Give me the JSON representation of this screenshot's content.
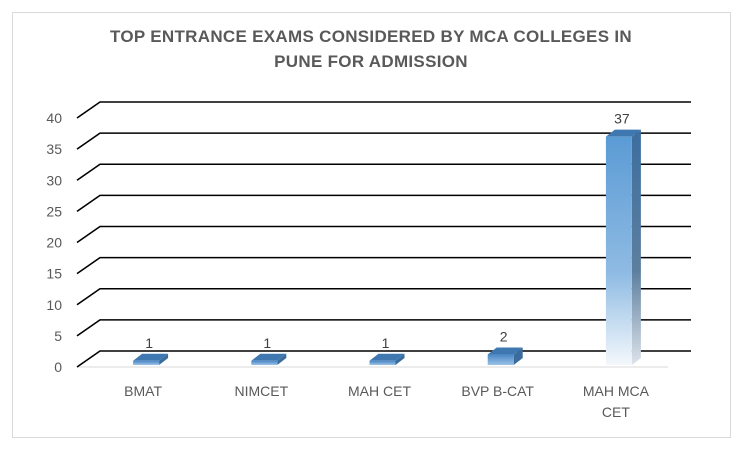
{
  "chart_data": {
    "type": "bar",
    "style": "3d-column",
    "title_lines": [
      "TOP ENTRANCE EXAMS CONSIDERED BY MCA COLLEGES IN",
      "PUNE FOR ADMISSION"
    ],
    "categories": [
      "BMAT",
      "NIMCET",
      "MAH CET",
      "BVP B-CAT",
      "MAH MCA CET"
    ],
    "category_lines": [
      [
        "BMAT"
      ],
      [
        "NIMCET"
      ],
      [
        "MAH CET"
      ],
      [
        "BVP B-CAT"
      ],
      [
        "MAH MCA",
        "CET"
      ]
    ],
    "values": [
      1,
      1,
      1,
      2,
      37
    ],
    "data_labels": [
      "1",
      "1",
      "1",
      "2",
      "37"
    ],
    "y_ticks": [
      "0",
      "5",
      "10",
      "15",
      "20",
      "25",
      "30",
      "35",
      "40"
    ],
    "ylim": [
      0,
      40
    ],
    "xlabel": "",
    "ylabel": "",
    "grid": true,
    "legend": "none",
    "colors": {
      "bar_top": "#4f8fcf",
      "bar_bottom": "#f2f7fc",
      "bar_side": "#3a6d9e",
      "gridline": "#000000",
      "text": "#595959"
    }
  }
}
